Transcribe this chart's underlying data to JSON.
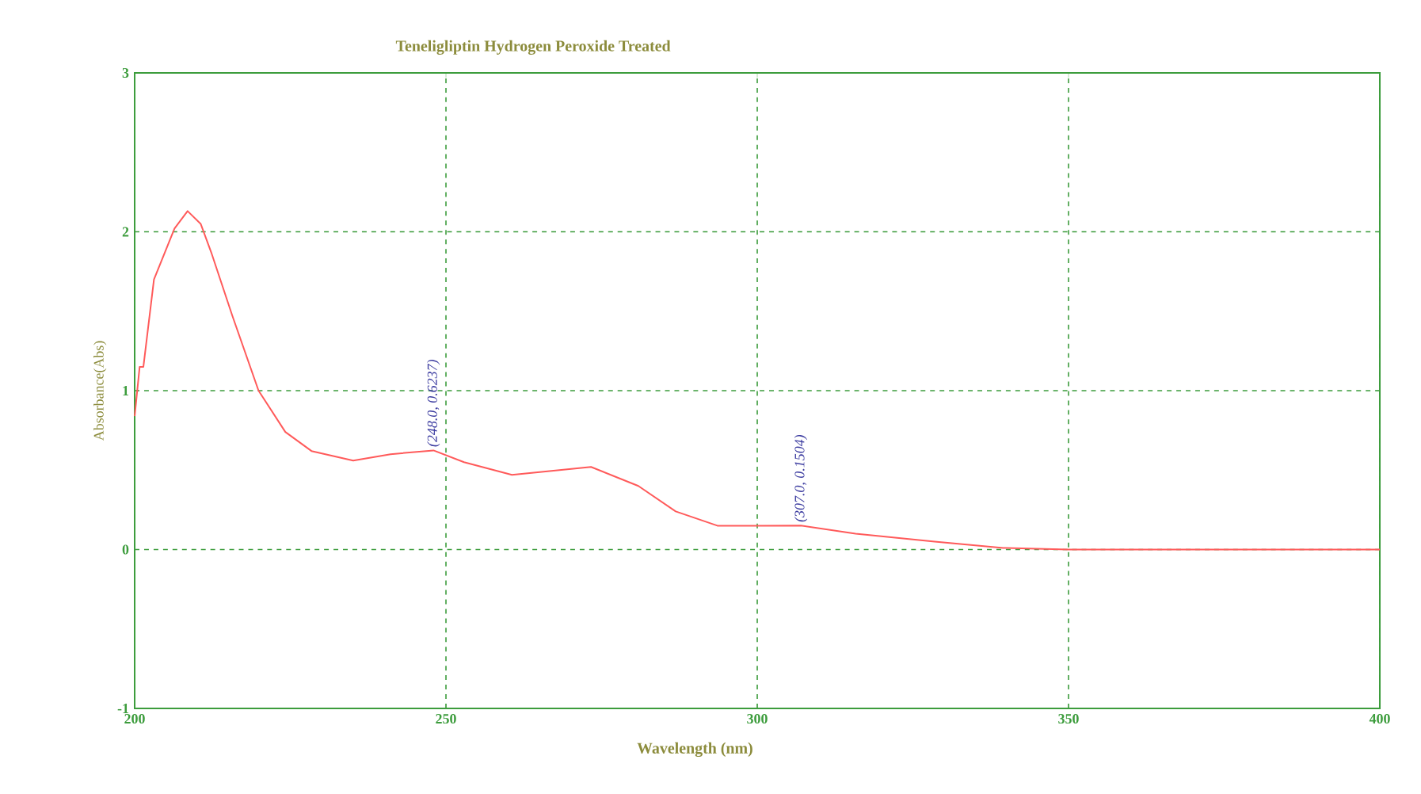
{
  "chart_data": {
    "type": "line",
    "title": "Teneligliptin Hydrogen Peroxide Treated",
    "xlabel": "Wavelength (nm)",
    "ylabel": "Absorbance(Abs)",
    "x": [
      200,
      200.8,
      201.4,
      203.1,
      206.4,
      208.5,
      210.6,
      212.3,
      215.7,
      219.9,
      224.2,
      228.4,
      235.1,
      241.1,
      248,
      252.9,
      260.6,
      273.3,
      280.9,
      286.9,
      293.6,
      300,
      307,
      315.8,
      328.5,
      339.5,
      350,
      400
    ],
    "series": [
      {
        "color": "#ff5a5a",
        "values": [
          0.84,
          1.15,
          1.15,
          1.7,
          2.02,
          2.13,
          2.05,
          1.87,
          1.47,
          1.0,
          0.74,
          0.62,
          0.56,
          0.6,
          0.6237,
          0.55,
          0.47,
          0.52,
          0.4,
          0.24,
          0.15,
          0.15,
          0.1504,
          0.1,
          0.05,
          0.01,
          0,
          0
        ]
      }
    ],
    "xlim": [
      200,
      400
    ],
    "ylim": [
      -1,
      3
    ],
    "xticks": [
      200,
      250,
      300,
      350,
      400
    ],
    "yticks": [
      -1,
      0,
      1,
      2,
      3
    ],
    "grid": true,
    "line_style": "solid",
    "marker": "none",
    "annotations": [
      {
        "text": "(248.0, 0.6237)",
        "x": 248,
        "y": 0.6237
      },
      {
        "text": "(307.0, 0.1504)",
        "x": 307,
        "y": 0.1504
      }
    ]
  }
}
